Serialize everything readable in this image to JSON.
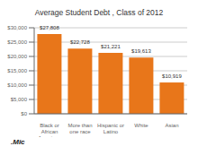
{
  "chart_data": {
    "type": "bar",
    "title": "Average Student Debt , Class of 2012",
    "categories": [
      "Black or\nAfrican\nAmerican",
      "More than\none race",
      "Hispanic or\nLatino",
      "White",
      "Asian"
    ],
    "values": [
      27808,
      22728,
      21221,
      19613,
      10919
    ],
    "value_labels": [
      "$27,808",
      "$22,728",
      "$21,221",
      "$19,613",
      "$10,919"
    ],
    "data_labels": true,
    "color": "#E8761A",
    "ylim": [
      0,
      30000
    ],
    "yticks": [
      {
        "value": 0,
        "label": "$0"
      },
      {
        "value": 5000,
        "label": "$5,000"
      },
      {
        "value": 10000,
        "label": "$10,000"
      },
      {
        "value": 15000,
        "label": "$15,000"
      },
      {
        "value": 20000,
        "label": "$20,000"
      },
      {
        "value": 25000,
        "label": "$25,000"
      },
      {
        "value": 30000,
        "label": "$30,000"
      }
    ],
    "grid": true,
    "annotations": [
      ".Mic"
    ]
  }
}
